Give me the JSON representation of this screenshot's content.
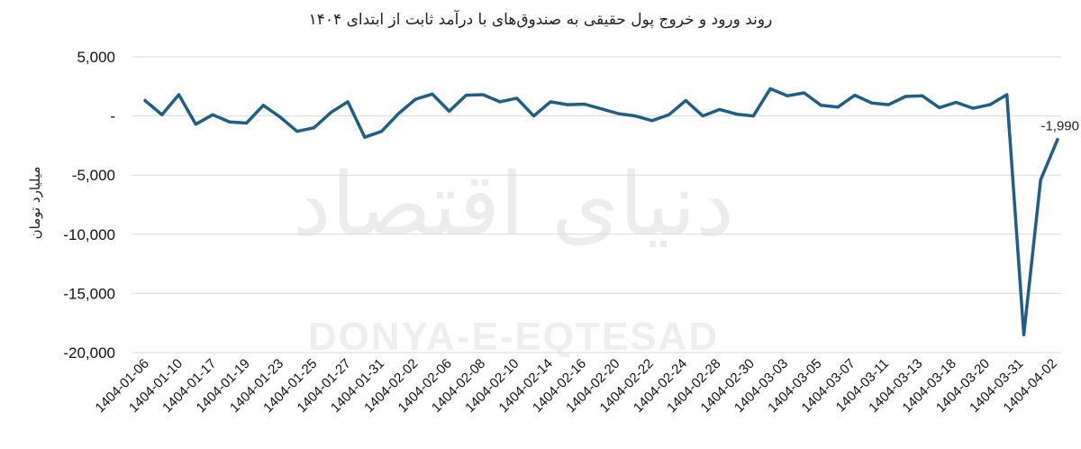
{
  "chart_data": {
    "type": "line",
    "title": "روند ورود و خروج پول حقیقی به صندوق‌های با درآمد ثابت از ابتدای ۱۴۰۴",
    "ylabel": "میلیارد تومان",
    "xlabel": "",
    "ylim": [
      -20000,
      5000
    ],
    "yticks": [
      5000,
      0,
      -5000,
      -10000,
      -15000,
      -20000
    ],
    "ytick_labels": [
      "5,000",
      "-",
      "-5,000",
      "-10,000",
      "-15,000",
      "-20,000"
    ],
    "x_tick_labels": [
      "1404-01-06",
      "1404-01-10",
      "1404-01-17",
      "1404-01-19",
      "1404-01-23",
      "1404-01-25",
      "1404-01-27",
      "1404-01-31",
      "1404-02-02",
      "1404-02-06",
      "1404-02-08",
      "1404-02-10",
      "1404-02-14",
      "1404-02-16",
      "1404-02-20",
      "1404-02-22",
      "1404-02-24",
      "1404-02-28",
      "1404-02-30",
      "1404-03-03",
      "1404-03-05",
      "1404-03-07",
      "1404-03-11",
      "1404-03-13",
      "1404-03-18",
      "1404-03-20",
      "1404-03-31",
      "1404-04-02"
    ],
    "grid": true,
    "legend": "none",
    "series": [
      {
        "color": "#1f5f86",
        "values": [
          1300,
          100,
          1800,
          -700,
          100,
          -500,
          -600,
          900,
          -100,
          -1300,
          -1000,
          300,
          1200,
          -1800,
          -1300,
          200,
          1400,
          1850,
          400,
          1750,
          1800,
          1200,
          1500,
          0,
          1200,
          950,
          1000,
          600,
          200,
          0,
          -400,
          100,
          1300,
          0,
          550,
          150,
          0,
          2300,
          1700,
          1950,
          900,
          750,
          1750,
          1100,
          950,
          1650,
          1700,
          700,
          1150,
          650,
          950,
          1800,
          -18500,
          -5400,
          -1990
        ]
      }
    ],
    "annotations": [
      {
        "label": "-1,990"
      }
    ]
  },
  "watermark": {
    "farsi": "دنیای اقتصاد",
    "latin": "DONYA-E-EQTESAD"
  }
}
